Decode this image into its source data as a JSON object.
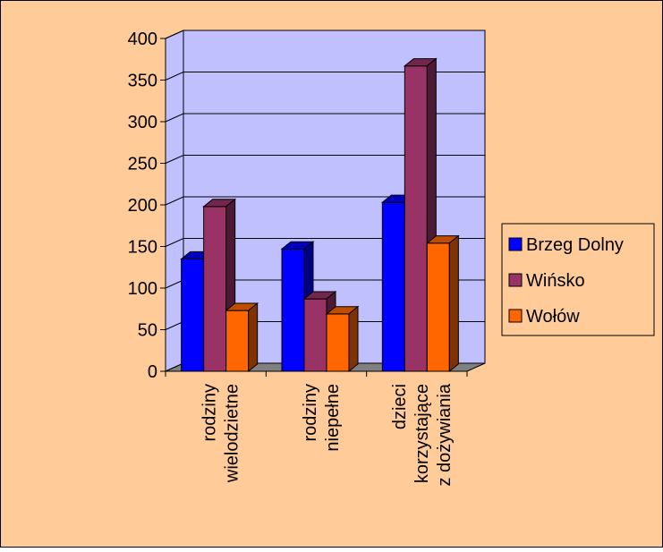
{
  "chart_data": {
    "type": "bar",
    "categories": [
      [
        "rodziny",
        "wielodzietne"
      ],
      [
        "rodziny",
        "niepełne"
      ],
      [
        "dzieci",
        "korzystające",
        "z dożywiania"
      ]
    ],
    "series": [
      {
        "name": "Brzeg Dolny",
        "values": [
          135,
          147,
          203
        ],
        "color": "#0000ff"
      },
      {
        "name": "Wińsko",
        "values": [
          198,
          87,
          367
        ],
        "color": "#993366"
      },
      {
        "name": "Wołów",
        "values": [
          73,
          69,
          154
        ],
        "color": "#ff6600"
      }
    ],
    "ylim": [
      0,
      400
    ],
    "yticks": [
      0,
      50,
      100,
      150,
      200,
      250,
      300,
      350,
      400
    ],
    "grid": true,
    "legend_position": "right",
    "colors": {
      "background": "#ffcc99",
      "plot_wall": "#c0c0ff",
      "floor": "#808080",
      "border": "#000000"
    }
  }
}
